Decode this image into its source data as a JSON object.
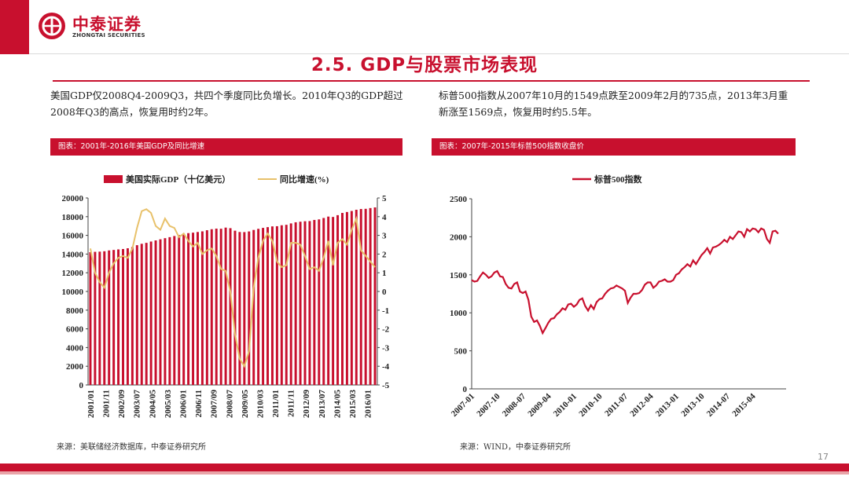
{
  "header": {
    "logo_name": "中泰证券",
    "logo_en": "ZHONGTAI SECURITIES",
    "title": "2.5.  GDP与股票市场表现",
    "page_number": "17",
    "brand_color": "#c8102e"
  },
  "left": {
    "description": "美国GDP仅2008Q4-2009Q3，共四个季度同比负增长。2010年Q3的GDP超过2008年Q3的高点，恢复用时约2年。",
    "caption": "图表：2001年-2016年美国GDP及同比增速",
    "source": "来源：美联储经济数据库，中泰证券研究所"
  },
  "right": {
    "description": "标普500指数从2007年10月的1549点跌至2009年2月的735点，2013年3月重新涨至1569点，恢复用时约5.5年。",
    "caption": "图表：2007年-2015年标普500指数收盘价",
    "source": "来源：WIND，中泰证券研究所"
  },
  "chart_data": [
    {
      "type": "bar+line",
      "title": "",
      "legend": [
        "美国实际GDP（十亿美元）",
        "同比增速(%)"
      ],
      "x": [
        "2001Q1",
        "2001Q2",
        "2001Q3",
        "2001Q4",
        "2002Q1",
        "2002Q2",
        "2002Q3",
        "2002Q4",
        "2003Q1",
        "2003Q2",
        "2003Q3",
        "2003Q4",
        "2004Q1",
        "2004Q2",
        "2004Q3",
        "2004Q4",
        "2005Q1",
        "2005Q2",
        "2005Q3",
        "2005Q4",
        "2006Q1",
        "2006Q2",
        "2006Q3",
        "2006Q4",
        "2007Q1",
        "2007Q2",
        "2007Q3",
        "2007Q4",
        "2008Q1",
        "2008Q2",
        "2008Q3",
        "2008Q4",
        "2009Q1",
        "2009Q2",
        "2009Q3",
        "2009Q4",
        "2010Q1",
        "2010Q2",
        "2010Q3",
        "2010Q4",
        "2011Q1",
        "2011Q2",
        "2011Q3",
        "2011Q4",
        "2012Q1",
        "2012Q2",
        "2012Q3",
        "2012Q4",
        "2013Q1",
        "2013Q2",
        "2013Q3",
        "2013Q4",
        "2014Q1",
        "2014Q2",
        "2014Q3",
        "2014Q4",
        "2015Q1",
        "2015Q2",
        "2015Q3",
        "2015Q4",
        "2016Q1",
        "2016Q2"
      ],
      "x_tick_labels": [
        "2001/01",
        "2001/11",
        "2002/09",
        "2003/07",
        "2004/05",
        "2005/03",
        "2006/01",
        "2006/11",
        "2007/09",
        "2008/07",
        "2009/05",
        "2010/03",
        "2011/01",
        "2011/11",
        "2012/09",
        "2013/07",
        "2014/05",
        "2015/03",
        "2016/01"
      ],
      "series": [
        {
          "name": "美国实际GDP（十亿美元）",
          "axis": "left",
          "color": "#c8102e",
          "values": [
            14200,
            14240,
            14260,
            14300,
            14390,
            14440,
            14500,
            14540,
            14620,
            14750,
            14950,
            15100,
            15200,
            15340,
            15460,
            15580,
            15700,
            15810,
            15930,
            16030,
            16170,
            16240,
            16290,
            16360,
            16430,
            16550,
            16660,
            16720,
            16710,
            16830,
            16770,
            16500,
            16360,
            16350,
            16420,
            16580,
            16700,
            16800,
            16880,
            16960,
            16980,
            17080,
            17130,
            17280,
            17400,
            17460,
            17510,
            17530,
            17650,
            17710,
            17860,
            18010,
            17970,
            18160,
            18400,
            18500,
            18610,
            18740,
            18820,
            18840,
            18920,
            18990
          ]
        },
        {
          "name": "同比增速(%)",
          "axis": "right",
          "color": "#e8c16a",
          "values": [
            2.3,
            1.0,
            0.5,
            0.2,
            1.0,
            1.5,
            1.8,
            1.9,
            1.8,
            2.3,
            3.4,
            4.3,
            4.4,
            4.2,
            3.5,
            3.3,
            3.9,
            3.5,
            3.4,
            2.9,
            3.1,
            2.7,
            2.4,
            2.6,
            2.0,
            2.2,
            2.3,
            1.9,
            1.2,
            1.1,
            0.0,
            -2.3,
            -3.6,
            -4.0,
            -3.2,
            0.2,
            1.8,
            2.7,
            3.1,
            2.7,
            1.6,
            1.3,
            1.4,
            2.6,
            2.6,
            2.5,
            1.9,
            1.2,
            1.3,
            1.1,
            1.8,
            2.7,
            1.4,
            2.6,
            2.8,
            2.5,
            3.3,
            3.9,
            2.2,
            1.9,
            1.6,
            1.3
          ]
        }
      ],
      "y_left": {
        "range": [
          0,
          20000
        ],
        "ticks": [
          0,
          2000,
          4000,
          6000,
          8000,
          10000,
          12000,
          14000,
          16000,
          18000,
          20000
        ]
      },
      "y_right": {
        "range": [
          -5,
          5
        ],
        "ticks": [
          -5,
          -4,
          -3,
          -2,
          -1,
          0,
          1,
          2,
          3,
          4,
          5
        ]
      }
    },
    {
      "type": "line",
      "title": "",
      "legend": [
        "标普500指数"
      ],
      "x_tick_labels": [
        "2007-01",
        "2007-10",
        "2008-07",
        "2009-04",
        "2010-01",
        "2010-10",
        "2011-07",
        "2012-04",
        "2013-01",
        "2013-10",
        "2014-07",
        "2015-04"
      ],
      "x_start": "2007-01",
      "series": [
        {
          "name": "标普500指数",
          "color": "#c8102e",
          "values": [
            1430,
            1410,
            1420,
            1480,
            1530,
            1500,
            1460,
            1480,
            1530,
            1549,
            1480,
            1470,
            1380,
            1330,
            1320,
            1380,
            1400,
            1280,
            1260,
            1280,
            1170,
            950,
            880,
            900,
            830,
            735,
            800,
            870,
            920,
            930,
            980,
            1010,
            1060,
            1040,
            1110,
            1120,
            1080,
            1110,
            1170,
            1190,
            1090,
            1030,
            1100,
            1050,
            1140,
            1180,
            1190,
            1250,
            1290,
            1320,
            1330,
            1360,
            1340,
            1320,
            1290,
            1130,
            1200,
            1250,
            1250,
            1260,
            1300,
            1370,
            1400,
            1400,
            1330,
            1360,
            1410,
            1420,
            1440,
            1410,
            1410,
            1430,
            1500,
            1520,
            1570,
            1600,
            1640,
            1610,
            1690,
            1640,
            1700,
            1760,
            1800,
            1850,
            1780,
            1860,
            1870,
            1890,
            1920,
            1960,
            1930,
            2000,
            1970,
            2020,
            2070,
            2060,
            2000,
            2100,
            2070,
            2110,
            2100,
            2060,
            2110,
            2090,
            1970,
            1920,
            2070,
            2080,
            2040
          ]
        }
      ],
      "y": {
        "range": [
          0,
          2500
        ],
        "ticks": [
          0,
          500,
          1000,
          1500,
          2000,
          2500
        ]
      }
    }
  ]
}
